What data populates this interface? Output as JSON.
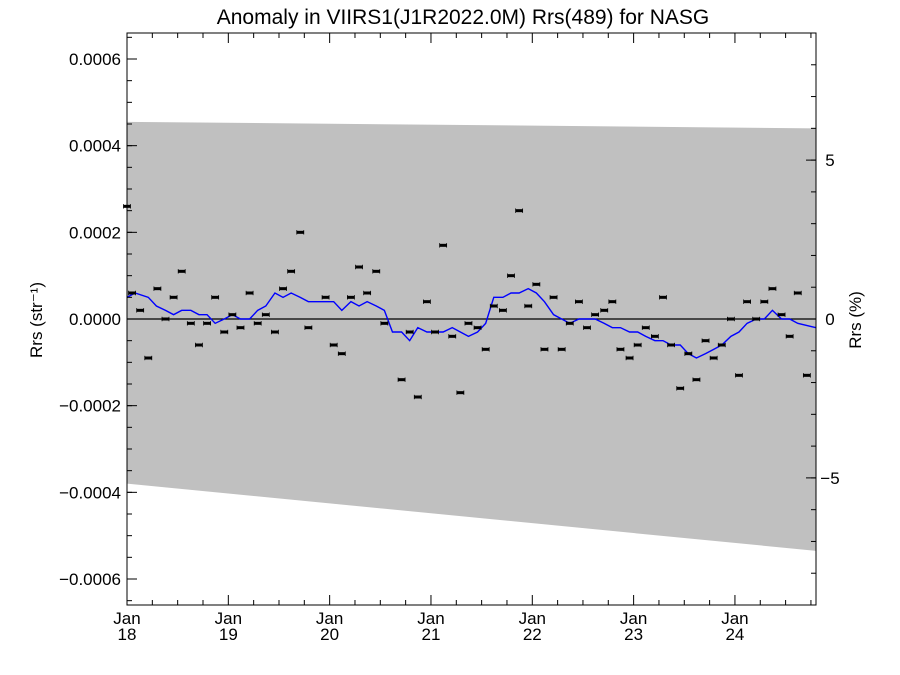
{
  "chart_data": {
    "type": "scatter",
    "title": "Anomaly in VIIRS1(J1R2022.0M) Rrs(489) for NASG",
    "ylabel_left": "Rrs (str⁻¹)",
    "ylabel_right": "Rrs (%)",
    "xlabel": "",
    "xlim": [
      2018.0,
      2024.8
    ],
    "ylim": [
      -0.00066,
      0.00066
    ],
    "ylim_right": [
      -9.0,
      9.0
    ],
    "grid": false,
    "x_ticks": [
      {
        "x": 2018,
        "top": "Jan",
        "bottom": "18"
      },
      {
        "x": 2019,
        "top": "Jan",
        "bottom": "19"
      },
      {
        "x": 2020,
        "top": "Jan",
        "bottom": "20"
      },
      {
        "x": 2021,
        "top": "Jan",
        "bottom": "21"
      },
      {
        "x": 2022,
        "top": "Jan",
        "bottom": "22"
      },
      {
        "x": 2023,
        "top": "Jan",
        "bottom": "23"
      },
      {
        "x": 2024,
        "top": "Jan",
        "bottom": "24"
      }
    ],
    "y_ticks_left": [
      {
        "v": 0.0006,
        "label": "0.0006"
      },
      {
        "v": 0.0004,
        "label": "0.0004"
      },
      {
        "v": 0.0002,
        "label": "0.0002"
      },
      {
        "v": 0.0,
        "label": "0.0000"
      },
      {
        "v": -0.0002,
        "label": "−0.0002"
      },
      {
        "v": -0.0004,
        "label": "−0.0004"
      },
      {
        "v": -0.0006,
        "label": "−0.0006"
      }
    ],
    "y_ticks_right": [
      {
        "v": 5,
        "label": "5"
      },
      {
        "v": 0,
        "label": "0"
      },
      {
        "v": -5,
        "label": "−5"
      }
    ],
    "band": {
      "color": "#c0c0c0",
      "upper": [
        [
          2018.0,
          0.000455
        ],
        [
          2024.8,
          0.00044
        ]
      ],
      "lower": [
        [
          2018.0,
          -0.00038
        ],
        [
          2024.8,
          -0.000535
        ]
      ]
    },
    "zero_line_color": "#000000",
    "points_color": "#000000",
    "points": [
      [
        2018.0,
        0.00026
      ],
      [
        2018.05,
        6e-05
      ],
      [
        2018.13,
        2e-05
      ],
      [
        2018.21,
        -9e-05
      ],
      [
        2018.3,
        7e-05
      ],
      [
        2018.38,
        0.0
      ],
      [
        2018.46,
        5e-05
      ],
      [
        2018.54,
        0.00011
      ],
      [
        2018.63,
        -1e-05
      ],
      [
        2018.71,
        -6e-05
      ],
      [
        2018.79,
        -1e-05
      ],
      [
        2018.87,
        5e-05
      ],
      [
        2018.96,
        -3e-05
      ],
      [
        2019.04,
        1e-05
      ],
      [
        2019.12,
        -2e-05
      ],
      [
        2019.21,
        6e-05
      ],
      [
        2019.29,
        -1e-05
      ],
      [
        2019.37,
        1e-05
      ],
      [
        2019.46,
        -3e-05
      ],
      [
        2019.54,
        7e-05
      ],
      [
        2019.62,
        0.00011
      ],
      [
        2019.71,
        0.0002
      ],
      [
        2019.79,
        -2e-05
      ],
      [
        2019.96,
        5e-05
      ],
      [
        2020.04,
        -6e-05
      ],
      [
        2020.12,
        -8e-05
      ],
      [
        2020.21,
        5e-05
      ],
      [
        2020.29,
        0.00012
      ],
      [
        2020.37,
        6e-05
      ],
      [
        2020.46,
        0.00011
      ],
      [
        2020.54,
        -1e-05
      ],
      [
        2020.71,
        -0.00014
      ],
      [
        2020.79,
        -3e-05
      ],
      [
        2020.87,
        -0.00018
      ],
      [
        2020.96,
        4e-05
      ],
      [
        2021.04,
        -3e-05
      ],
      [
        2021.12,
        0.00017
      ],
      [
        2021.21,
        -4e-05
      ],
      [
        2021.29,
        -0.00017
      ],
      [
        2021.37,
        -1e-05
      ],
      [
        2021.46,
        -2e-05
      ],
      [
        2021.54,
        -7e-05
      ],
      [
        2021.62,
        3e-05
      ],
      [
        2021.71,
        2e-05
      ],
      [
        2021.79,
        0.0001
      ],
      [
        2021.87,
        0.00025
      ],
      [
        2021.96,
        3e-05
      ],
      [
        2022.04,
        8e-05
      ],
      [
        2022.12,
        -7e-05
      ],
      [
        2022.21,
        5e-05
      ],
      [
        2022.29,
        -7e-05
      ],
      [
        2022.37,
        -1e-05
      ],
      [
        2022.46,
        4e-05
      ],
      [
        2022.54,
        -2e-05
      ],
      [
        2022.62,
        1e-05
      ],
      [
        2022.71,
        2e-05
      ],
      [
        2022.79,
        4e-05
      ],
      [
        2022.87,
        -7e-05
      ],
      [
        2022.96,
        -9e-05
      ],
      [
        2023.04,
        -6e-05
      ],
      [
        2023.12,
        -2e-05
      ],
      [
        2023.21,
        -4e-05
      ],
      [
        2023.29,
        5e-05
      ],
      [
        2023.37,
        -6e-05
      ],
      [
        2023.46,
        -0.00016
      ],
      [
        2023.54,
        -8e-05
      ],
      [
        2023.62,
        -0.00014
      ],
      [
        2023.71,
        -5e-05
      ],
      [
        2023.79,
        -9e-05
      ],
      [
        2023.87,
        -6e-05
      ],
      [
        2023.96,
        0.0
      ],
      [
        2024.04,
        -0.00013
      ],
      [
        2024.12,
        4e-05
      ],
      [
        2024.21,
        0.0
      ],
      [
        2024.29,
        4e-05
      ],
      [
        2024.37,
        7e-05
      ],
      [
        2024.46,
        1e-05
      ],
      [
        2024.54,
        -4e-05
      ],
      [
        2024.62,
        6e-05
      ],
      [
        2024.71,
        -0.00013
      ]
    ],
    "trend_color": "#0000ff",
    "trend": [
      [
        2018.0,
        5e-05
      ],
      [
        2018.08,
        6e-05
      ],
      [
        2018.21,
        5e-05
      ],
      [
        2018.29,
        3e-05
      ],
      [
        2018.38,
        2e-05
      ],
      [
        2018.46,
        1e-05
      ],
      [
        2018.54,
        2e-05
      ],
      [
        2018.63,
        2e-05
      ],
      [
        2018.71,
        1e-05
      ],
      [
        2018.79,
        1e-05
      ],
      [
        2018.87,
        -1e-05
      ],
      [
        2018.96,
        0.0
      ],
      [
        2019.04,
        1e-05
      ],
      [
        2019.12,
        0.0
      ],
      [
        2019.21,
        0.0
      ],
      [
        2019.29,
        2e-05
      ],
      [
        2019.37,
        3e-05
      ],
      [
        2019.46,
        6e-05
      ],
      [
        2019.54,
        5e-05
      ],
      [
        2019.62,
        6e-05
      ],
      [
        2019.71,
        5e-05
      ],
      [
        2019.79,
        4e-05
      ],
      [
        2019.87,
        4e-05
      ],
      [
        2019.96,
        4e-05
      ],
      [
        2020.04,
        4e-05
      ],
      [
        2020.12,
        2e-05
      ],
      [
        2020.21,
        4e-05
      ],
      [
        2020.29,
        3e-05
      ],
      [
        2020.37,
        4e-05
      ],
      [
        2020.46,
        3e-05
      ],
      [
        2020.54,
        2e-05
      ],
      [
        2020.62,
        -3e-05
      ],
      [
        2020.71,
        -3e-05
      ],
      [
        2020.79,
        -5e-05
      ],
      [
        2020.87,
        -2e-05
      ],
      [
        2020.96,
        -3e-05
      ],
      [
        2021.04,
        -3e-05
      ],
      [
        2021.12,
        -3e-05
      ],
      [
        2021.21,
        -2e-05
      ],
      [
        2021.29,
        -3e-05
      ],
      [
        2021.37,
        -4e-05
      ],
      [
        2021.46,
        -3e-05
      ],
      [
        2021.54,
        -1e-05
      ],
      [
        2021.62,
        5e-05
      ],
      [
        2021.71,
        5e-05
      ],
      [
        2021.79,
        6e-05
      ],
      [
        2021.87,
        6e-05
      ],
      [
        2021.96,
        7e-05
      ],
      [
        2022.04,
        6e-05
      ],
      [
        2022.12,
        4e-05
      ],
      [
        2022.21,
        1e-05
      ],
      [
        2022.29,
        0.0
      ],
      [
        2022.37,
        -1e-05
      ],
      [
        2022.46,
        0.0
      ],
      [
        2022.54,
        0.0
      ],
      [
        2022.62,
        0.0
      ],
      [
        2022.71,
        -1e-05
      ],
      [
        2022.79,
        -2e-05
      ],
      [
        2022.87,
        -2e-05
      ],
      [
        2022.96,
        -3e-05
      ],
      [
        2023.04,
        -3e-05
      ],
      [
        2023.12,
        -4e-05
      ],
      [
        2023.21,
        -5e-05
      ],
      [
        2023.29,
        -5e-05
      ],
      [
        2023.37,
        -6e-05
      ],
      [
        2023.46,
        -6e-05
      ],
      [
        2023.54,
        -8e-05
      ],
      [
        2023.62,
        -9e-05
      ],
      [
        2023.71,
        -8e-05
      ],
      [
        2023.79,
        -7e-05
      ],
      [
        2023.87,
        -6e-05
      ],
      [
        2023.96,
        -4e-05
      ],
      [
        2024.04,
        -3e-05
      ],
      [
        2024.12,
        -1e-05
      ],
      [
        2024.21,
        0.0
      ],
      [
        2024.29,
        0.0
      ],
      [
        2024.37,
        2e-05
      ],
      [
        2024.46,
        0.0
      ],
      [
        2024.54,
        0.0
      ],
      [
        2024.62,
        -1e-05
      ],
      [
        2024.8,
        -2e-05
      ]
    ]
  }
}
